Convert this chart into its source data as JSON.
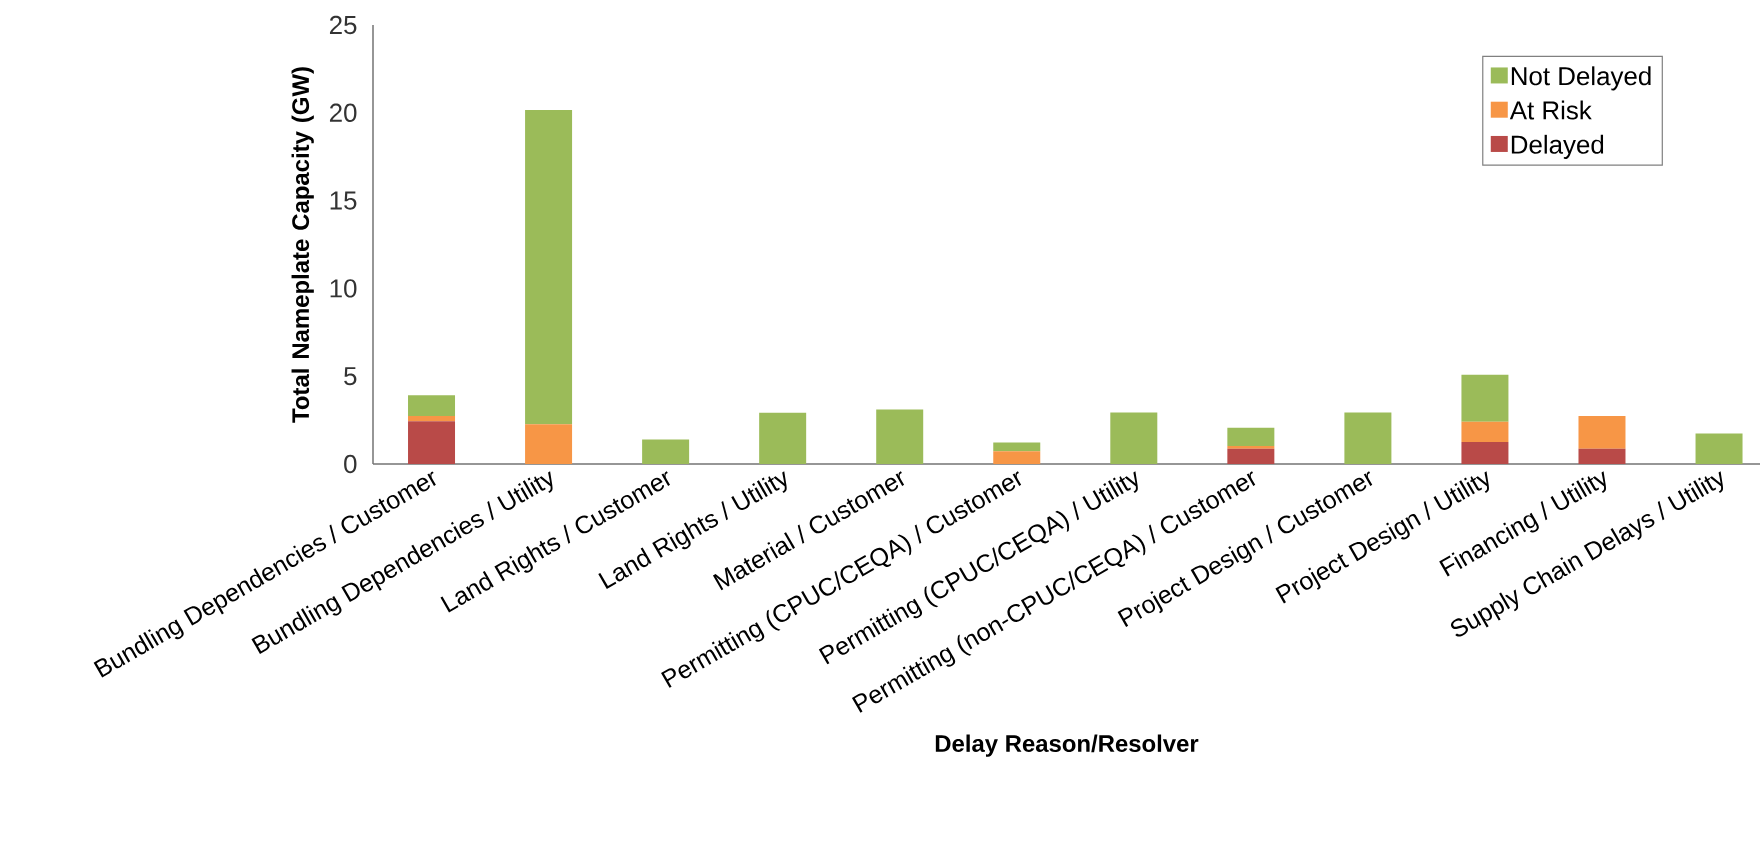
{
  "chart_data": {
    "type": "bar",
    "stacked": true,
    "xlabel": "Delay Reason/Resolver",
    "ylabel": "Total Nameplate Capacity (GW)",
    "categories": [
      "Bundling Dependencies / Customer",
      "Bundling Dependencies / Utility",
      "Land Rights / Customer",
      "Land Rights / Utility",
      "Material / Customer",
      "Permitting (CPUC/CEQA) / Customer",
      "Permitting (CPUC/CEQA) / Utility",
      "Permitting (non-CPUC/CEQA) / Customer",
      "Project Design / Customer",
      "Project Design / Utility",
      "Financing / Utility",
      "Supply Chain Delays / Utility"
    ],
    "series": [
      {
        "name": "Delayed",
        "color": "#b94a48",
        "values": [
          2.44,
          0,
          0,
          0,
          0,
          0,
          0,
          0.87,
          0,
          1.25,
          0.87,
          0
        ]
      },
      {
        "name": "At Risk",
        "color": "#f79646",
        "values": [
          0.3,
          2.26,
          0,
          0,
          0,
          0.72,
          0,
          0.16,
          0,
          1.15,
          1.87,
          0
        ]
      },
      {
        "name": "Not Delayed",
        "color": "#9bbb59",
        "values": [
          1.17,
          17.9,
          1.4,
          2.92,
          3.1,
          0.5,
          2.93,
          1.03,
          2.93,
          2.68,
          0,
          1.74
        ]
      }
    ],
    "ylim": [
      0,
      25
    ],
    "yticks": [
      0,
      5,
      10,
      15,
      20,
      25
    ],
    "legend": "top right",
    "grid": false
  }
}
